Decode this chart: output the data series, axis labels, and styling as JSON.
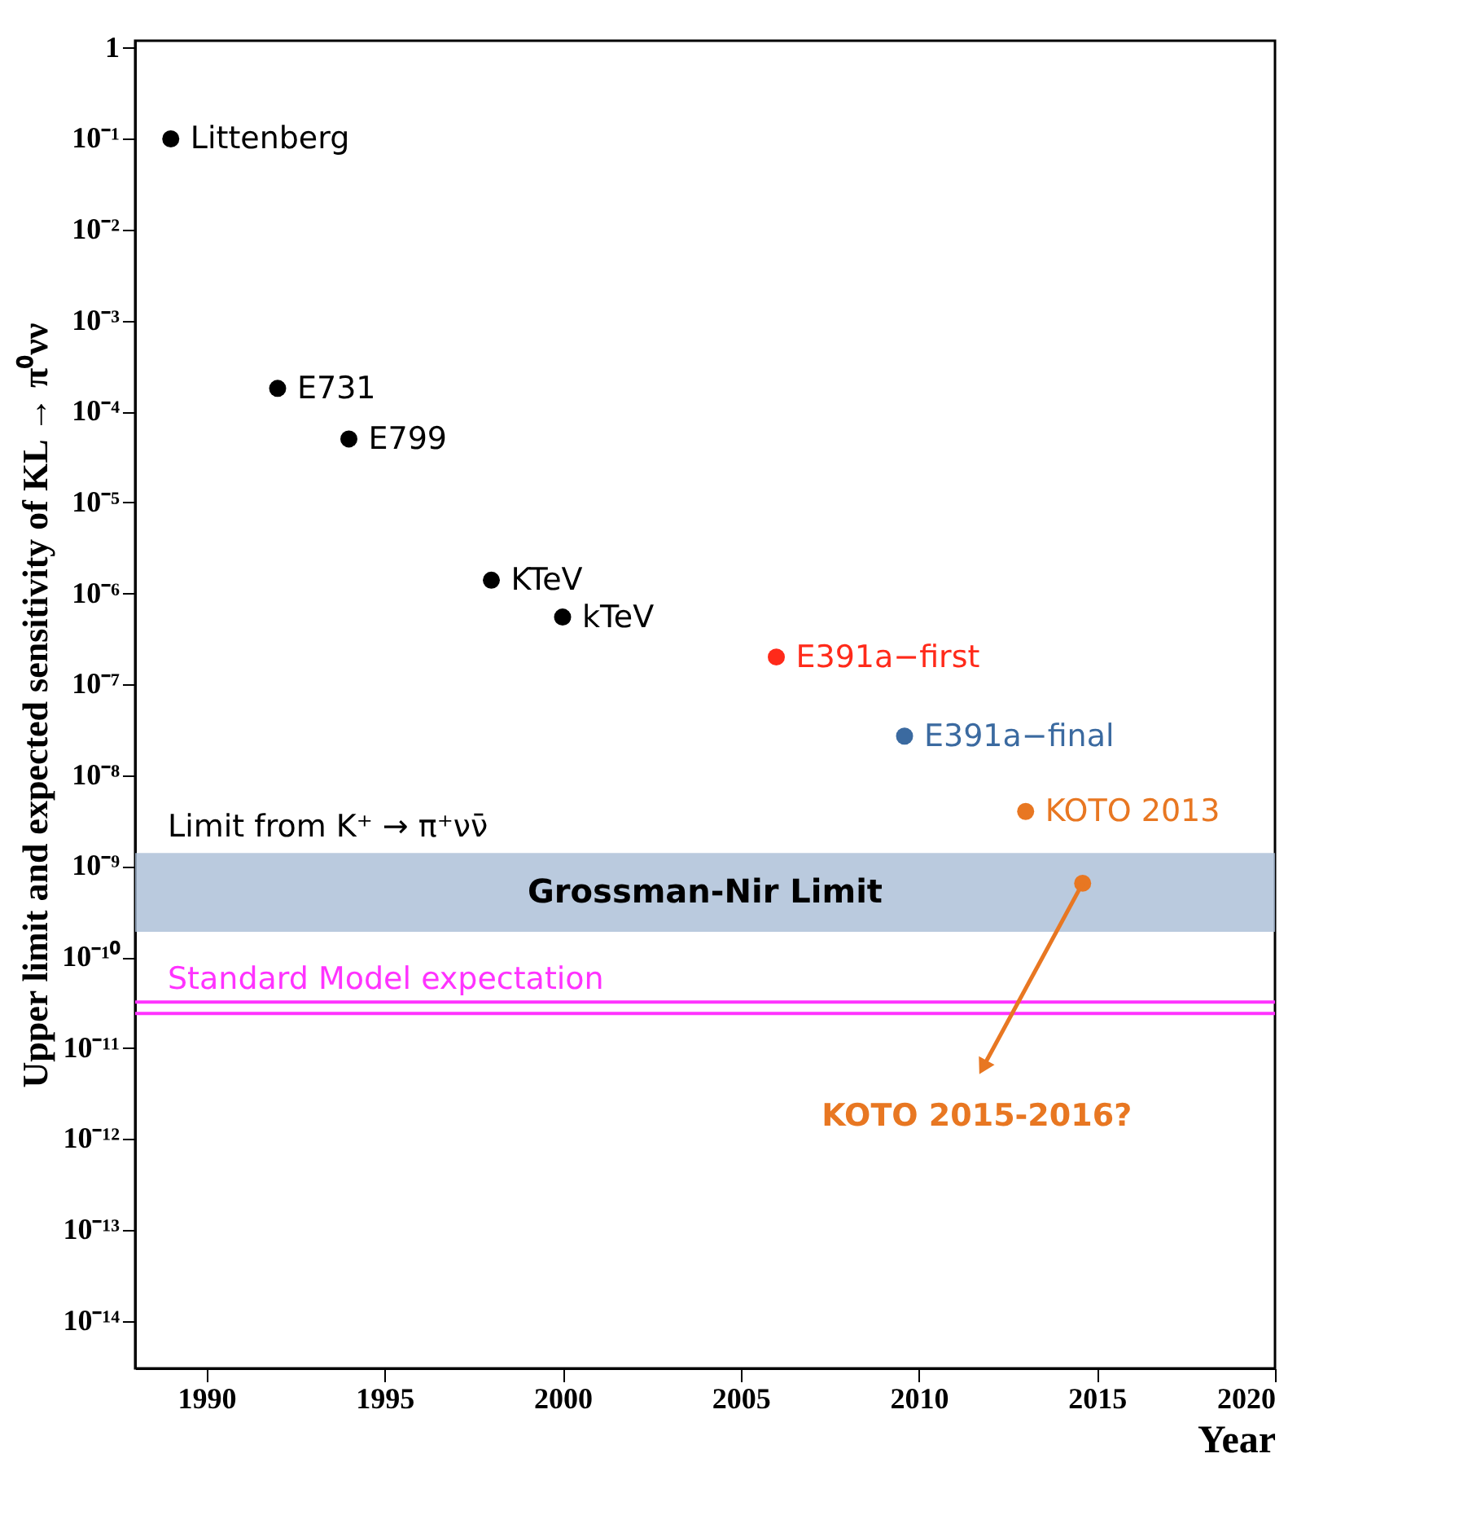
{
  "chart_data": {
    "type": "scatter",
    "xlabel": "Year",
    "ylabel": "Upper limit and expected sensitivity of KL → π⁰νν",
    "log": "y",
    "xlim": [
      1988,
      2020
    ],
    "xticks": [
      1990,
      1995,
      2000,
      2005,
      2010,
      2015,
      2020
    ],
    "ylim": [
      3e-15,
      1.2
    ],
    "yticks": [
      {
        "value": 1,
        "label": "1"
      },
      {
        "value": 0.1,
        "label": "10⁻¹"
      },
      {
        "value": 0.01,
        "label": "10⁻²"
      },
      {
        "value": 0.001,
        "label": "10⁻³"
      },
      {
        "value": 0.0001,
        "label": "10⁻⁴"
      },
      {
        "value": 1e-05,
        "label": "10⁻⁵"
      },
      {
        "value": 1e-06,
        "label": "10⁻⁶"
      },
      {
        "value": 1e-07,
        "label": "10⁻⁷"
      },
      {
        "value": 1e-08,
        "label": "10⁻⁸"
      },
      {
        "value": 1e-09,
        "label": "10⁻⁹"
      },
      {
        "value": 1e-10,
        "label": "10⁻¹⁰"
      },
      {
        "value": 1e-11,
        "label": "10⁻¹¹"
      },
      {
        "value": 1e-12,
        "label": "10⁻¹²"
      },
      {
        "value": 1e-13,
        "label": "10⁻¹³"
      },
      {
        "value": 1e-14,
        "label": "10⁻¹⁴"
      }
    ],
    "grid": false,
    "legend": false,
    "marker": "circle",
    "series": [
      {
        "name": "Littenberg",
        "color": "#000000",
        "x": [
          1989
        ],
        "values": [
          0.1
        ]
      },
      {
        "name": "E731",
        "color": "#000000",
        "x": [
          1992
        ],
        "values": [
          0.00018
        ]
      },
      {
        "name": "E799",
        "color": "#000000",
        "x": [
          1994
        ],
        "values": [
          5e-05
        ]
      },
      {
        "name": "KTeV",
        "color": "#000000",
        "x": [
          1998
        ],
        "values": [
          1.4e-06
        ]
      },
      {
        "name": "kTeV",
        "color": "#000000",
        "x": [
          2000
        ],
        "values": [
          5.5e-07
        ]
      },
      {
        "name": "E391a−first",
        "color": "#ff2a1a",
        "x": [
          2006
        ],
        "values": [
          2e-07
        ]
      },
      {
        "name": "E391a−final",
        "color": "#3b6aa0",
        "x": [
          2009.6
        ],
        "values": [
          2.7e-08
        ]
      },
      {
        "name": "KOTO 2013",
        "color": "#e87722",
        "x": [
          2013
        ],
        "values": [
          4e-09
        ]
      },
      {
        "color": "#e87722",
        "x": [
          2014.6
        ],
        "values": [
          6.5e-10
        ]
      }
    ],
    "bands": [
      {
        "axis": "y",
        "from": 1.9e-10,
        "to": 1.4e-09,
        "label": "Grossman-Nir Limit",
        "color": "#a9bdd6"
      }
    ],
    "ref_lines": [
      {
        "axis": "y",
        "value": 3.2e-11,
        "label": "Standard Model expectation",
        "color": "#ff33ff"
      },
      {
        "axis": "y",
        "value": 2.4e-11,
        "color": "#ff33ff"
      }
    ],
    "annotations": [
      "Limit from K⁺ → π⁺νν̄",
      "KOTO 2015-2016?"
    ]
  }
}
